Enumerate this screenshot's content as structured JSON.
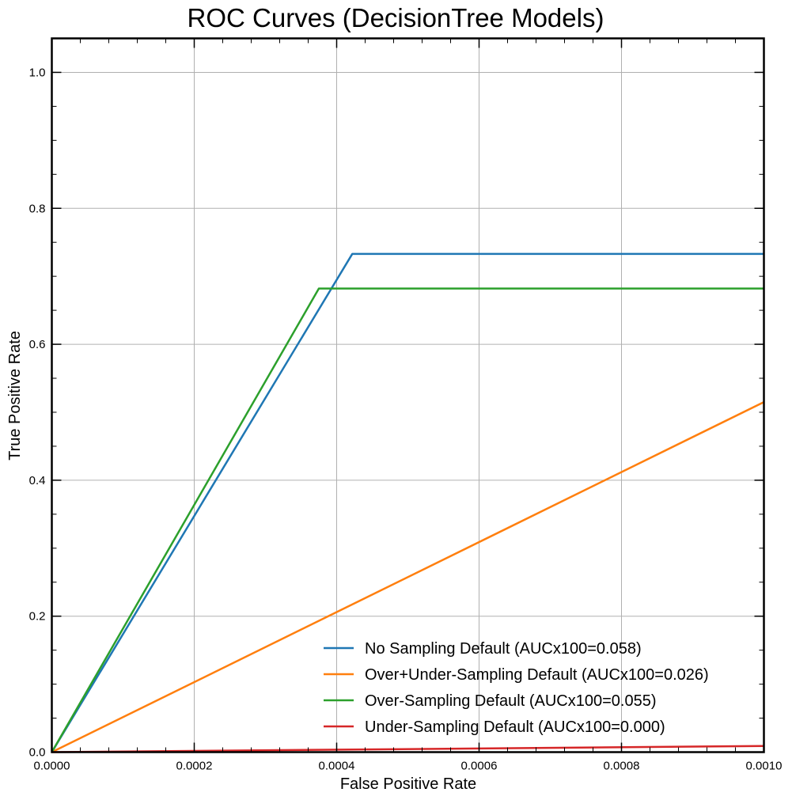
{
  "chart_data": {
    "type": "line",
    "title": "ROC Curves (DecisionTree Models)",
    "xlabel": "False Positive Rate",
    "ylabel": "True Positive Rate",
    "xlim": [
      0,
      0.001
    ],
    "ylim": [
      0,
      1.05
    ],
    "xticks": [
      "0.0000",
      "0.0002",
      "0.0004",
      "0.0006",
      "0.0008",
      "0.0010"
    ],
    "yticks": [
      "0.0",
      "0.2",
      "0.4",
      "0.6",
      "0.8",
      "1.0"
    ],
    "grid": true,
    "legend_position": "lower-right",
    "series": [
      {
        "name": "No Sampling Default (AUCx100=0.058)",
        "color": "#1f77b4",
        "x": [
          0,
          0.000422,
          0.001
        ],
        "y": [
          0,
          0.733,
          0.733
        ]
      },
      {
        "name": "Over+Under-Sampling Default (AUCx100=0.026)",
        "color": "#ff7f0e",
        "x": [
          0,
          0.001
        ],
        "y": [
          0,
          0.515
        ]
      },
      {
        "name": "Over-Sampling Default (AUCx100=0.055)",
        "color": "#2ca02c",
        "x": [
          0,
          0.000375,
          0.001
        ],
        "y": [
          0,
          0.682,
          0.682
        ]
      },
      {
        "name": "Under-Sampling Default (AUCx100=0.000)",
        "color": "#d62728",
        "x": [
          0,
          0.001
        ],
        "y": [
          0,
          0.009
        ]
      }
    ]
  }
}
